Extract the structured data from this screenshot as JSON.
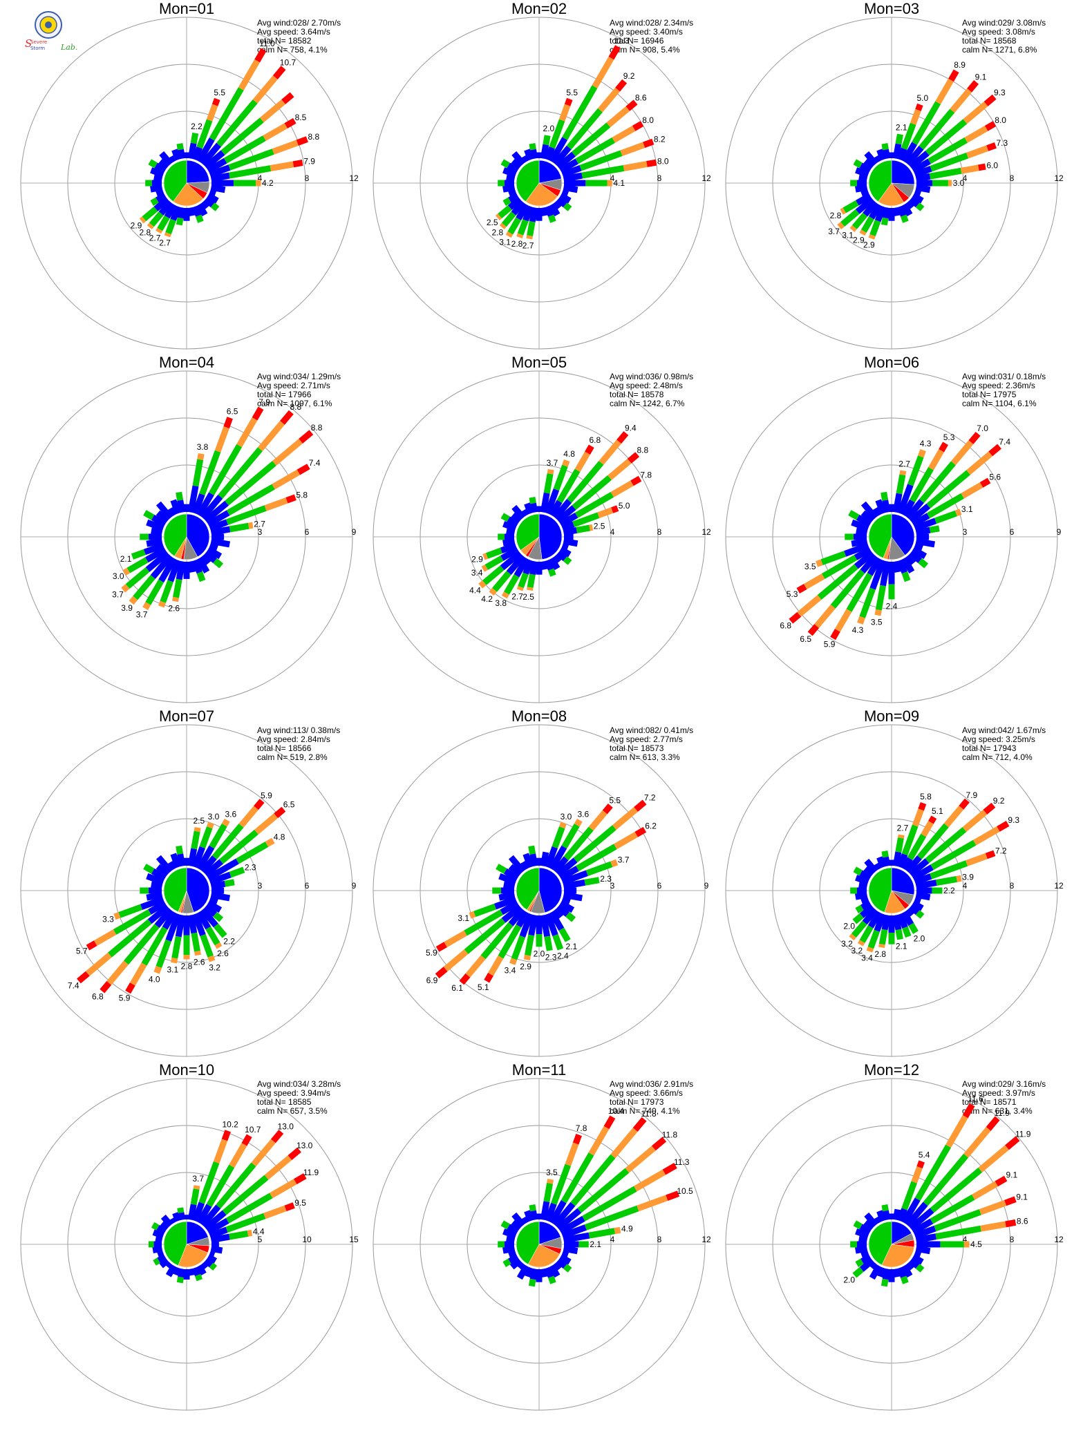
{
  "logo": {
    "text_s1": "Severe",
    "text_s2": "Storm",
    "text_lab": "Lab."
  },
  "colors": {
    "blue": "#0000ff",
    "green": "#00cc00",
    "orange": "#ff9933",
    "red": "#ff0000",
    "purple": "#8800cc",
    "gray": "#888888",
    "ring": "#999999",
    "axis": "#aaaaaa"
  },
  "chart_data": [
    {
      "type": "polar-bar",
      "title": "Mon=01",
      "rmax": 12,
      "ticks": [
        4,
        8,
        12
      ],
      "stats": [
        "Avg wind:028/ 2.70m/s",
        "Avg speed: 3.64m/s",
        "total N=      18582",
        "calm N=    758,   4.1%"
      ],
      "labeled": [
        [
          10,
          2.2
        ],
        [
          20,
          5.5
        ],
        [
          30,
          11.0
        ],
        [
          40,
          10.7
        ],
        [
          50,
          null
        ],
        [
          60,
          8.5
        ],
        [
          70,
          8.8
        ],
        [
          80,
          7.9
        ],
        [
          90,
          4.2
        ],
        [
          200,
          2.7
        ],
        [
          210,
          2.7
        ],
        [
          220,
          2.8
        ],
        [
          230,
          2.9
        ]
      ],
      "pie": [
        {
          "c": "blue",
          "f": 0.24
        },
        {
          "c": "gray",
          "f": 0.08
        },
        {
          "c": "red",
          "f": 0.05
        },
        {
          "c": "orange",
          "f": 0.23
        },
        {
          "c": "green",
          "f": 0.4
        }
      ]
    },
    {
      "type": "polar-bar",
      "title": "Mon=02",
      "rmax": 12,
      "ticks": [
        4,
        8,
        12
      ],
      "stats": [
        "Avg wind:028/ 2.34m/s",
        "Avg speed: 3.40m/s",
        "total N=      16946",
        "calm N=    908,   5.4%"
      ],
      "labeled": [
        [
          10,
          2.0
        ],
        [
          20,
          5.5
        ],
        [
          30,
          11.3
        ],
        [
          40,
          9.2
        ],
        [
          50,
          8.6
        ],
        [
          60,
          8.0
        ],
        [
          70,
          8.2
        ],
        [
          80,
          8.0
        ],
        [
          90,
          4.1
        ],
        [
          190,
          2.7
        ],
        [
          200,
          2.8
        ],
        [
          210,
          3.1
        ],
        [
          220,
          2.8
        ],
        [
          230,
          2.5
        ]
      ],
      "pie": [
        {
          "c": "blue",
          "f": 0.22
        },
        {
          "c": "gray",
          "f": 0.08
        },
        {
          "c": "red",
          "f": 0.05
        },
        {
          "c": "orange",
          "f": 0.25
        },
        {
          "c": "green",
          "f": 0.4
        }
      ]
    },
    {
      "type": "polar-bar",
      "title": "Mon=03",
      "rmax": 12,
      "ticks": [
        4,
        8,
        12
      ],
      "stats": [
        "Avg wind:029/ 3.08m/s",
        "Avg speed: 3.08m/s",
        "total N=      18568",
        "calm N=   1271,   6.8%"
      ],
      "labeled": [
        [
          10,
          2.1
        ],
        [
          20,
          5.0
        ],
        [
          30,
          8.9
        ],
        [
          40,
          9.1
        ],
        [
          50,
          9.3
        ],
        [
          60,
          8.0
        ],
        [
          70,
          7.3
        ],
        [
          80,
          6.0
        ],
        [
          90,
          3.0
        ],
        [
          200,
          2.9
        ],
        [
          210,
          2.9
        ],
        [
          220,
          3.1
        ],
        [
          230,
          3.7
        ],
        [
          240,
          2.8
        ]
      ],
      "pie": [
        {
          "c": "blue",
          "f": 0.26
        },
        {
          "c": "gray",
          "f": 0.1
        },
        {
          "c": "red",
          "f": 0.05
        },
        {
          "c": "orange",
          "f": 0.19
        },
        {
          "c": "green",
          "f": 0.4
        }
      ]
    },
    {
      "type": "polar-bar",
      "title": "Mon=04",
      "rmax": 9,
      "ticks": [
        3,
        6,
        9
      ],
      "stats": [
        "Avg wind:034/ 1.29m/s",
        "Avg speed: 2.71m/s",
        "total N=      17966",
        "calm N=   1097,   6.1%"
      ],
      "labeled": [
        [
          10,
          3.8
        ],
        [
          20,
          6.5
        ],
        [
          30,
          7.9
        ],
        [
          40,
          8.8
        ],
        [
          50,
          8.8
        ],
        [
          60,
          7.4
        ],
        [
          70,
          5.8
        ],
        [
          80,
          2.7
        ],
        [
          190,
          2.6
        ],
        [
          210,
          3.7
        ],
        [
          220,
          3.9
        ],
        [
          230,
          3.7
        ],
        [
          240,
          3.0
        ],
        [
          250,
          2.1
        ]
      ],
      "pie": [
        {
          "c": "blue",
          "f": 0.42
        },
        {
          "c": "gray",
          "f": 0.1
        },
        {
          "c": "red",
          "f": 0.02
        },
        {
          "c": "orange",
          "f": 0.05
        },
        {
          "c": "green",
          "f": 0.41
        }
      ]
    },
    {
      "type": "polar-bar",
      "title": "Mon=05",
      "rmax": 12,
      "ticks": [
        4,
        8,
        12
      ],
      "stats": [
        "Avg wind:036/ 0.98m/s",
        "Avg speed: 2.48m/s",
        "total N=      18578",
        "calm N=   1242,   6.7%"
      ],
      "labeled": [
        [
          10,
          3.7
        ],
        [
          20,
          4.8
        ],
        [
          30,
          6.8
        ],
        [
          40,
          9.4
        ],
        [
          50,
          8.8
        ],
        [
          60,
          7.8
        ],
        [
          70,
          5.0
        ],
        [
          80,
          2.5
        ],
        [
          190,
          2.5
        ],
        [
          200,
          2.7
        ],
        [
          210,
          3.8
        ],
        [
          220,
          4.2
        ],
        [
          230,
          4.4
        ],
        [
          240,
          3.4
        ],
        [
          250,
          2.9
        ]
      ],
      "pie": [
        {
          "c": "blue",
          "f": 0.48
        },
        {
          "c": "gray",
          "f": 0.1
        },
        {
          "c": "red",
          "f": 0.02
        },
        {
          "c": "orange",
          "f": 0.05
        },
        {
          "c": "green",
          "f": 0.35
        }
      ]
    },
    {
      "type": "polar-bar",
      "title": "Mon=06",
      "rmax": 9,
      "ticks": [
        3,
        6,
        9
      ],
      "stats": [
        "Avg wind:031/ 0.18m/s",
        "Avg speed: 2.36m/s",
        "total N=      17975",
        "calm N=   1104,   6.1%"
      ],
      "labeled": [
        [
          10,
          2.7
        ],
        [
          20,
          4.3
        ],
        [
          30,
          5.3
        ],
        [
          40,
          7.0
        ],
        [
          50,
          7.4
        ],
        [
          60,
          5.6
        ],
        [
          70,
          3.1
        ],
        [
          180,
          2.4
        ],
        [
          190,
          3.5
        ],
        [
          200,
          4.3
        ],
        [
          210,
          5.9
        ],
        [
          220,
          6.5
        ],
        [
          230,
          6.8
        ],
        [
          240,
          5.3
        ],
        [
          250,
          3.5
        ]
      ],
      "pie": [
        {
          "c": "blue",
          "f": 0.4
        },
        {
          "c": "gray",
          "f": 0.12
        },
        {
          "c": "red",
          "f": 0.01
        },
        {
          "c": "orange",
          "f": 0.03
        },
        {
          "c": "green",
          "f": 0.44
        }
      ]
    },
    {
      "type": "polar-bar",
      "title": "Mon=07",
      "rmax": 9,
      "ticks": [
        3,
        6,
        9
      ],
      "stats": [
        "Avg wind:113/ 0.38m/s",
        "Avg speed: 2.84m/s",
        "total N=      18566",
        "calm N=    519,   2.8%"
      ],
      "labeled": [
        [
          10,
          2.5
        ],
        [
          20,
          3.0
        ],
        [
          30,
          3.6
        ],
        [
          40,
          5.9
        ],
        [
          50,
          6.5
        ],
        [
          60,
          4.8
        ],
        [
          70,
          2.3
        ],
        [
          140,
          2.2
        ],
        [
          150,
          2.6
        ],
        [
          160,
          3.2
        ],
        [
          170,
          2.6
        ],
        [
          180,
          2.8
        ],
        [
          190,
          3.1
        ],
        [
          200,
          4.0
        ],
        [
          210,
          5.9
        ],
        [
          220,
          6.8
        ],
        [
          230,
          7.4
        ],
        [
          240,
          5.7
        ],
        [
          250,
          3.3
        ]
      ],
      "pie": [
        {
          "c": "blue",
          "f": 0.45
        },
        {
          "c": "gray",
          "f": 0.08
        },
        {
          "c": "red",
          "f": 0.01
        },
        {
          "c": "orange",
          "f": 0.02
        },
        {
          "c": "green",
          "f": 0.44
        }
      ]
    },
    {
      "type": "polar-bar",
      "title": "Mon=08",
      "rmax": 9,
      "ticks": [
        3,
        6,
        9
      ],
      "stats": [
        "Avg wind:082/ 0.41m/s",
        "Avg speed: 2.77m/s",
        "total N=      18573",
        "calm N=    613,   3.3%"
      ],
      "labeled": [
        [
          20,
          3.0
        ],
        [
          30,
          3.6
        ],
        [
          40,
          5.5
        ],
        [
          50,
          7.2
        ],
        [
          60,
          6.2
        ],
        [
          70,
          3.7
        ],
        [
          80,
          2.3
        ],
        [
          150,
          2.1
        ],
        [
          160,
          2.4
        ],
        [
          170,
          2.3
        ],
        [
          180,
          2.0
        ],
        [
          190,
          2.9
        ],
        [
          200,
          3.4
        ],
        [
          210,
          5.1
        ],
        [
          220,
          6.1
        ],
        [
          230,
          6.9
        ],
        [
          240,
          5.9
        ],
        [
          250,
          3.1
        ]
      ],
      "pie": [
        {
          "c": "blue",
          "f": 0.46
        },
        {
          "c": "gray",
          "f": 0.1
        },
        {
          "c": "red",
          "f": 0.01
        },
        {
          "c": "orange",
          "f": 0.02
        },
        {
          "c": "green",
          "f": 0.41
        }
      ]
    },
    {
      "type": "polar-bar",
      "title": "Mon=09",
      "rmax": 12,
      "ticks": [
        4,
        8,
        12
      ],
      "stats": [
        "Avg wind:042/ 1.67m/s",
        "Avg speed: 3.25m/s",
        "total N=      17943",
        "calm N=    712,   4.0%"
      ],
      "labeled": [
        [
          10,
          2.7
        ],
        [
          20,
          5.8
        ],
        [
          30,
          5.1
        ],
        [
          40,
          7.9
        ],
        [
          50,
          9.2
        ],
        [
          60,
          9.3
        ],
        [
          70,
          7.2
        ],
        [
          80,
          3.9
        ],
        [
          90,
          2.2
        ],
        [
          150,
          2.0
        ],
        [
          170,
          2.1
        ],
        [
          190,
          2.8
        ],
        [
          200,
          3.4
        ],
        [
          210,
          3.2
        ],
        [
          220,
          3.2
        ],
        [
          230,
          2.0
        ]
      ],
      "pie": [
        {
          "c": "blue",
          "f": 0.28
        },
        {
          "c": "gray",
          "f": 0.08
        },
        {
          "c": "red",
          "f": 0.04
        },
        {
          "c": "orange",
          "f": 0.15
        },
        {
          "c": "green",
          "f": 0.45
        }
      ]
    },
    {
      "type": "polar-bar",
      "title": "Mon=10",
      "rmax": 15,
      "ticks": [
        5,
        10,
        15
      ],
      "stats": [
        "Avg wind:034/ 3.28m/s",
        "Avg speed: 3.94m/s",
        "total N=      18585",
        "calm N=    657,   3.5%"
      ],
      "labeled": [
        [
          10,
          3.7
        ],
        [
          20,
          10.2
        ],
        [
          30,
          10.7
        ],
        [
          40,
          13.0
        ],
        [
          50,
          13.0
        ],
        [
          60,
          11.9
        ],
        [
          70,
          9.5
        ],
        [
          80,
          4.4
        ]
      ],
      "pie": [
        {
          "c": "blue",
          "f": 0.2
        },
        {
          "c": "gray",
          "f": 0.06
        },
        {
          "c": "red",
          "f": 0.05
        },
        {
          "c": "orange",
          "f": 0.25
        },
        {
          "c": "green",
          "f": 0.44
        }
      ]
    },
    {
      "type": "polar-bar",
      "title": "Mon=11",
      "rmax": 12,
      "ticks": [
        4,
        8,
        12
      ],
      "stats": [
        "Avg wind:036/ 2.91m/s",
        "Avg speed: 3.66m/s",
        "total N=      17973",
        "calm N=    740,   4.1%"
      ],
      "labeled": [
        [
          10,
          3.5
        ],
        [
          20,
          7.8
        ],
        [
          30,
          10.4
        ],
        [
          40,
          11.8
        ],
        [
          50,
          11.8
        ],
        [
          60,
          11.3
        ],
        [
          70,
          10.5
        ],
        [
          80,
          4.9
        ],
        [
          90,
          2.1
        ]
      ],
      "pie": [
        {
          "c": "blue",
          "f": 0.2
        },
        {
          "c": "gray",
          "f": 0.08
        },
        {
          "c": "red",
          "f": 0.04
        },
        {
          "c": "orange",
          "f": 0.26
        },
        {
          "c": "green",
          "f": 0.42
        }
      ]
    },
    {
      "type": "polar-bar",
      "title": "Mon=12",
      "rmax": 12,
      "ticks": [
        4,
        8,
        12
      ],
      "stats": [
        "Avg wind:029/ 3.16m/s",
        "Avg speed: 3.97m/s",
        "total N=      18571",
        "calm N=    631,   3.4%"
      ],
      "labeled": [
        [
          20,
          5.4
        ],
        [
          30,
          11.6
        ],
        [
          40,
          11.9
        ],
        [
          50,
          11.9
        ],
        [
          60,
          9.1
        ],
        [
          70,
          9.1
        ],
        [
          80,
          8.6
        ],
        [
          90,
          4.5
        ],
        [
          230,
          2.0
        ]
      ],
      "pie": [
        {
          "c": "blue",
          "f": 0.17
        },
        {
          "c": "gray",
          "f": 0.05
        },
        {
          "c": "red",
          "f": 0.05
        },
        {
          "c": "orange",
          "f": 0.3
        },
        {
          "c": "green",
          "f": 0.43
        }
      ]
    }
  ]
}
